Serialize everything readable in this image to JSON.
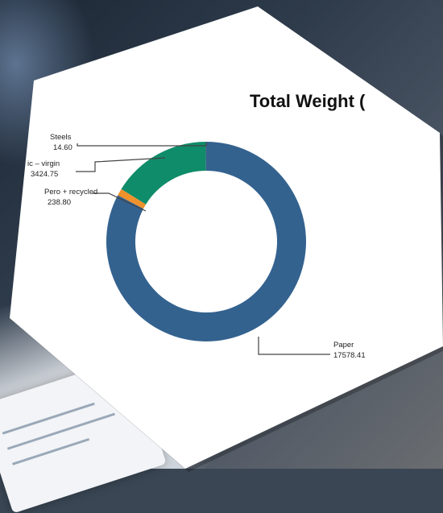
{
  "chart_data": {
    "type": "pie",
    "title": "Total Weight (",
    "series": [
      {
        "label_line1": "Paper",
        "label_line2": "17578.41",
        "value": 17578.41,
        "color": "#34628f"
      },
      {
        "label_line1": "Pero + recycled",
        "label_line2": "238.80",
        "value": 238.8,
        "color": "#f0922b"
      },
      {
        "label_line1": "ic – virgin",
        "label_line2": "3424.75",
        "value": 3424.75,
        "color": "#0f8c6a"
      },
      {
        "label_line1": "Steels",
        "label_line2": "14.60",
        "value": 14.6,
        "color": "#5c6b78"
      }
    ],
    "legend": "none"
  }
}
